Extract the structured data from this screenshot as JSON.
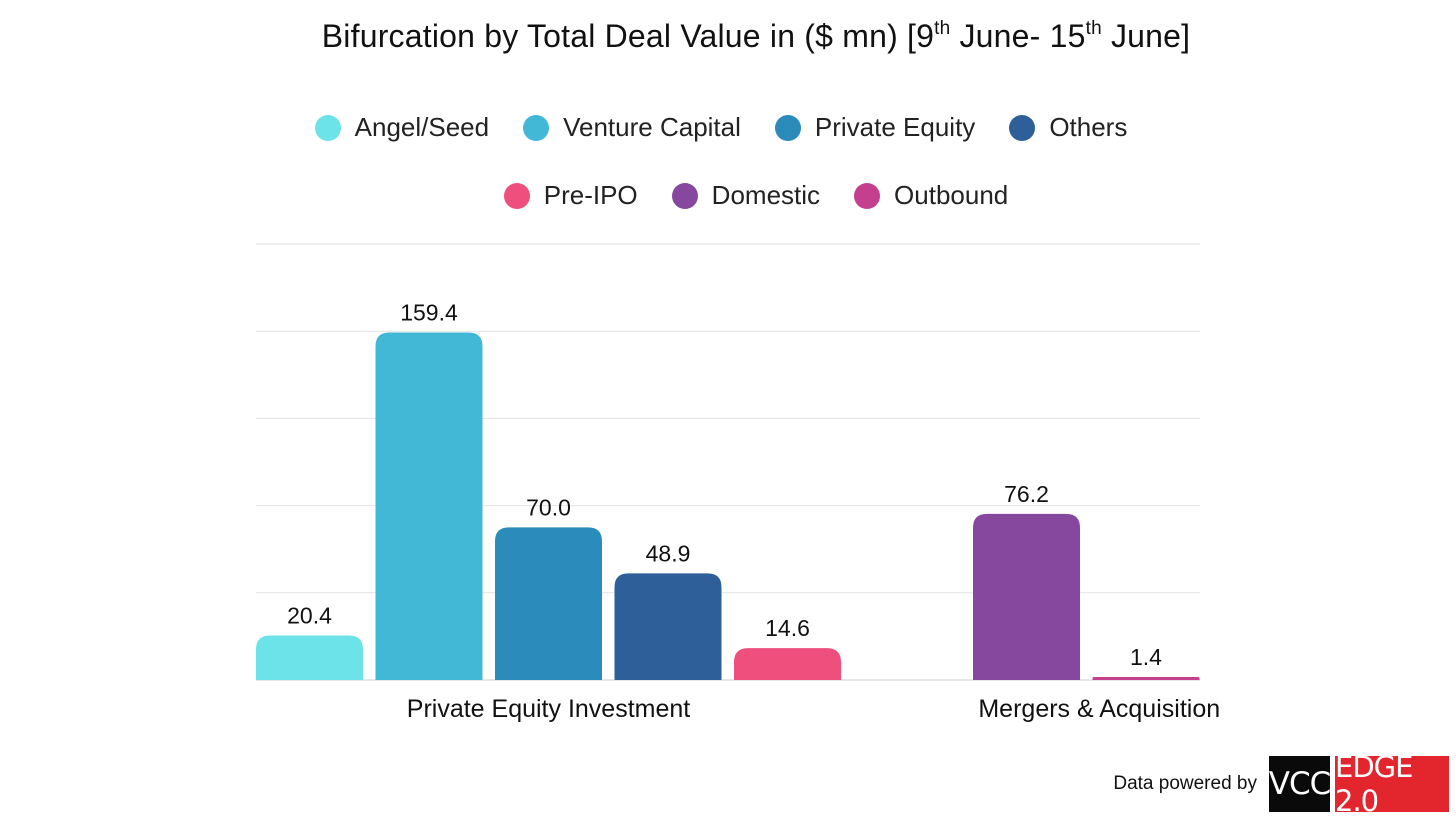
{
  "title": {
    "pre": "Bifurcation by Total Deal Value in ($ mn) [9",
    "sup1": "th",
    "mid": " June- 15",
    "sup2": "th",
    "post": " June]"
  },
  "footer": {
    "text": "Data powered by",
    "logo_left": "VCC",
    "logo_right": "EDGE 2.0"
  },
  "chart_data": {
    "type": "bar",
    "title": "Bifurcation by Total Deal Value in ($ mn) [9th June- 15th June]",
    "xlabel": "",
    "ylabel": "",
    "ylim": [
      0,
      200
    ],
    "grid": true,
    "legend_position": "top",
    "legend": [
      {
        "name": "Angel/Seed",
        "color": "#6be3e8"
      },
      {
        "name": "Venture Capital",
        "color": "#42b7d6"
      },
      {
        "name": "Private Equity",
        "color": "#2b8bba"
      },
      {
        "name": "Others",
        "color": "#2e5f99"
      },
      {
        "name": "Pre-IPO",
        "color": "#ef4f7d"
      },
      {
        "name": "Domestic",
        "color": "#86489f"
      },
      {
        "name": "Outbound",
        "color": "#c4408f"
      }
    ],
    "groups": [
      {
        "category": "Private Equity Investment",
        "bars": [
          {
            "series": "Angel/Seed",
            "value": 20.4,
            "label": "20.4"
          },
          {
            "series": "Venture Capital",
            "value": 159.4,
            "label": "159.4"
          },
          {
            "series": "Private Equity",
            "value": 70.0,
            "label": "70.0"
          },
          {
            "series": "Others",
            "value": 48.9,
            "label": "48.9"
          },
          {
            "series": "Pre-IPO",
            "value": 14.6,
            "label": "14.6"
          }
        ]
      },
      {
        "category": "Mergers & Acquisition",
        "bars": [
          {
            "series": "Domestic",
            "value": 76.2,
            "label": "76.2"
          },
          {
            "series": "Outbound",
            "value": 1.4,
            "label": "1.4"
          }
        ]
      }
    ]
  }
}
